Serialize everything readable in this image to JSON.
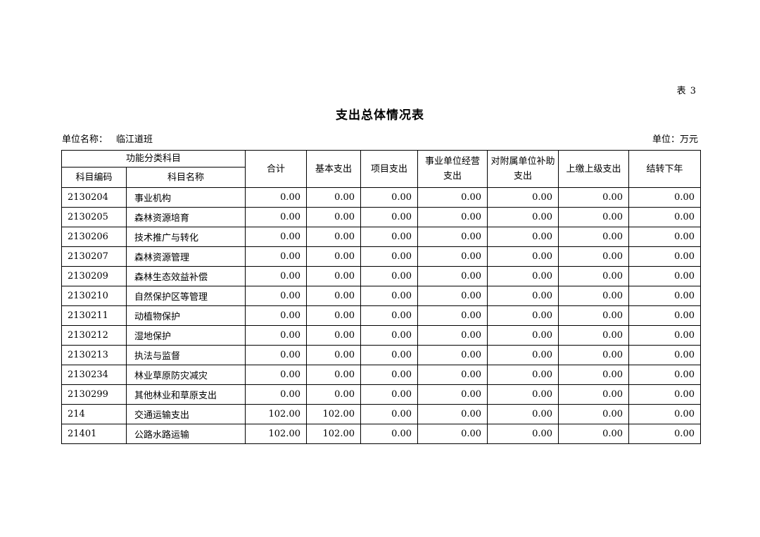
{
  "page": {
    "table_label": "表 3",
    "title": "支出总体情况表",
    "unit_name_label": "单位名称：",
    "unit_name_value": "临江道班",
    "unit_of_measure": "单位：万元"
  },
  "table": {
    "header": {
      "group": "功能分类科目",
      "code": "科目编码",
      "name": "科目名称",
      "columns": [
        "合计",
        "基本支出",
        "项目支出",
        "事业单位经营支出",
        "对附属单位补助支出",
        "上缴上级支出",
        "结转下年"
      ]
    },
    "rows": [
      {
        "code": "2130204",
        "name": "事业机构",
        "values": [
          "0.00",
          "0.00",
          "0.00",
          "0.00",
          "0.00",
          "0.00",
          "0.00"
        ]
      },
      {
        "code": "2130205",
        "name": "森林资源培育",
        "values": [
          "0.00",
          "0.00",
          "0.00",
          "0.00",
          "0.00",
          "0.00",
          "0.00"
        ]
      },
      {
        "code": "2130206",
        "name": "技术推广与转化",
        "values": [
          "0.00",
          "0.00",
          "0.00",
          "0.00",
          "0.00",
          "0.00",
          "0.00"
        ]
      },
      {
        "code": "2130207",
        "name": "森林资源管理",
        "values": [
          "0.00",
          "0.00",
          "0.00",
          "0.00",
          "0.00",
          "0.00",
          "0.00"
        ]
      },
      {
        "code": "2130209",
        "name": "森林生态效益补偿",
        "values": [
          "0.00",
          "0.00",
          "0.00",
          "0.00",
          "0.00",
          "0.00",
          "0.00"
        ]
      },
      {
        "code": "2130210",
        "name": "自然保护区等管理",
        "values": [
          "0.00",
          "0.00",
          "0.00",
          "0.00",
          "0.00",
          "0.00",
          "0.00"
        ]
      },
      {
        "code": "2130211",
        "name": "动植物保护",
        "values": [
          "0.00",
          "0.00",
          "0.00",
          "0.00",
          "0.00",
          "0.00",
          "0.00"
        ]
      },
      {
        "code": "2130212",
        "name": "湿地保护",
        "values": [
          "0.00",
          "0.00",
          "0.00",
          "0.00",
          "0.00",
          "0.00",
          "0.00"
        ]
      },
      {
        "code": "2130213",
        "name": "执法与监督",
        "values": [
          "0.00",
          "0.00",
          "0.00",
          "0.00",
          "0.00",
          "0.00",
          "0.00"
        ]
      },
      {
        "code": "2130234",
        "name": "林业草原防灾减灾",
        "values": [
          "0.00",
          "0.00",
          "0.00",
          "0.00",
          "0.00",
          "0.00",
          "0.00"
        ]
      },
      {
        "code": "2130299",
        "name": "其他林业和草原支出",
        "values": [
          "0.00",
          "0.00",
          "0.00",
          "0.00",
          "0.00",
          "0.00",
          "0.00"
        ]
      },
      {
        "code": "214",
        "name": "交通运输支出",
        "values": [
          "102.00",
          "102.00",
          "0.00",
          "0.00",
          "0.00",
          "0.00",
          "0.00"
        ]
      },
      {
        "code": "21401",
        "name": "公路水路运输",
        "values": [
          "102.00",
          "102.00",
          "0.00",
          "0.00",
          "0.00",
          "0.00",
          "0.00"
        ]
      }
    ]
  }
}
